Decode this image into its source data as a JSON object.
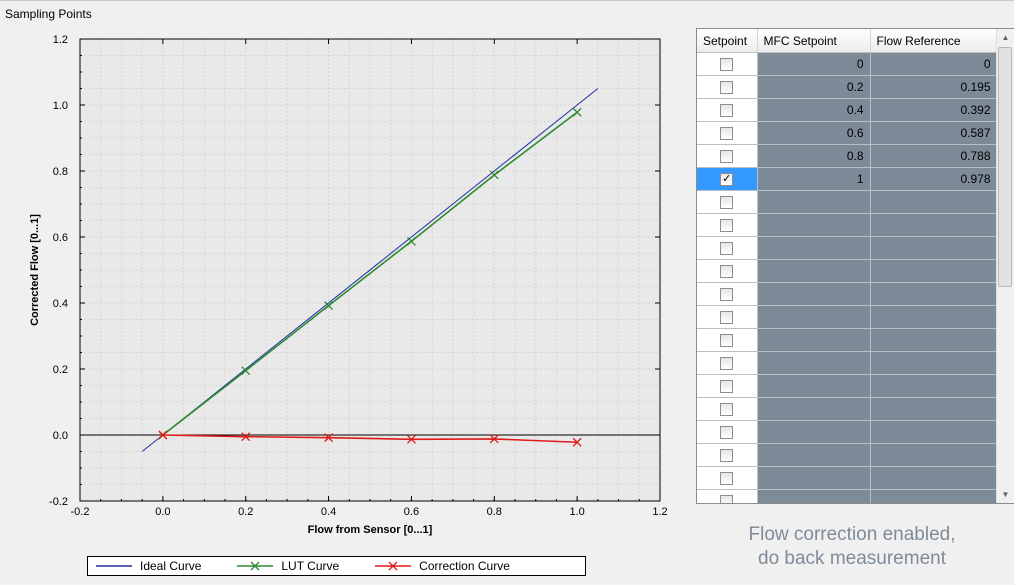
{
  "group_title": "Sampling Points",
  "chart_data": {
    "type": "line",
    "xlabel": "Flow from Sensor [0...1]",
    "ylabel": "Corrected Flow [0...1]",
    "xlim": [
      -0.2,
      1.2
    ],
    "ylim": [
      -0.2,
      1.2
    ],
    "x_ticks": [
      "-0.2",
      "0.0",
      "0.2",
      "0.4",
      "0.6",
      "0.8",
      "1.0",
      "1.2"
    ],
    "y_ticks": [
      "-0.2",
      "0.0",
      "0.2",
      "0.4",
      "0.6",
      "0.8",
      "1.0",
      "1.2"
    ],
    "grid": true,
    "series": [
      {
        "name": "Ideal Curve",
        "color": "#1f2fa8",
        "marker": "none",
        "x": [
          -0.05,
          1.05
        ],
        "y": [
          -0.05,
          1.05
        ]
      },
      {
        "name": "LUT Curve",
        "color": "#2e8b2e",
        "marker": "x",
        "x": [
          0,
          0.2,
          0.4,
          0.6,
          0.8,
          1.0
        ],
        "y": [
          0,
          0.195,
          0.392,
          0.587,
          0.788,
          0.978
        ]
      },
      {
        "name": "Correction Curve",
        "color": "#e01b1b",
        "marker": "x",
        "x": [
          0,
          0.2,
          0.4,
          0.6,
          0.8,
          1.0
        ],
        "y": [
          0,
          -0.005,
          -0.008,
          -0.013,
          -0.012,
          -0.022
        ]
      }
    ],
    "legend_position": "bottom"
  },
  "legend": [
    {
      "label": "Ideal Curve",
      "color": "#1f2fa8",
      "marker": "none"
    },
    {
      "label": "LUT Curve",
      "color": "#2e8b2e",
      "marker": "x"
    },
    {
      "label": "Correction Curve",
      "color": "#e01b1b",
      "marker": "x"
    }
  ],
  "table": {
    "headers": [
      "Setpoint",
      "MFC Setpoint",
      "Flow Reference"
    ],
    "rows": [
      {
        "checked": false,
        "mfc": "0",
        "flow": "0"
      },
      {
        "checked": false,
        "mfc": "0.2",
        "flow": "0.195"
      },
      {
        "checked": false,
        "mfc": "0.4",
        "flow": "0.392"
      },
      {
        "checked": false,
        "mfc": "0.6",
        "flow": "0.587"
      },
      {
        "checked": false,
        "mfc": "0.8",
        "flow": "0.788"
      },
      {
        "checked": true,
        "mfc": "1",
        "flow": "0.978",
        "selected": true
      },
      {
        "checked": false,
        "mfc": "",
        "flow": ""
      },
      {
        "checked": false,
        "mfc": "",
        "flow": ""
      },
      {
        "checked": false,
        "mfc": "",
        "flow": ""
      },
      {
        "checked": false,
        "mfc": "",
        "flow": ""
      },
      {
        "checked": false,
        "mfc": "",
        "flow": ""
      },
      {
        "checked": false,
        "mfc": "",
        "flow": ""
      },
      {
        "checked": false,
        "mfc": "",
        "flow": ""
      },
      {
        "checked": false,
        "mfc": "",
        "flow": ""
      },
      {
        "checked": false,
        "mfc": "",
        "flow": ""
      },
      {
        "checked": false,
        "mfc": "",
        "flow": ""
      },
      {
        "checked": false,
        "mfc": "",
        "flow": ""
      },
      {
        "checked": false,
        "mfc": "",
        "flow": ""
      },
      {
        "checked": false,
        "mfc": "",
        "flow": ""
      },
      {
        "checked": false,
        "mfc": "",
        "flow": ""
      }
    ]
  },
  "status": {
    "line1": "Flow correction enabled,",
    "line2": "do back measurement"
  }
}
